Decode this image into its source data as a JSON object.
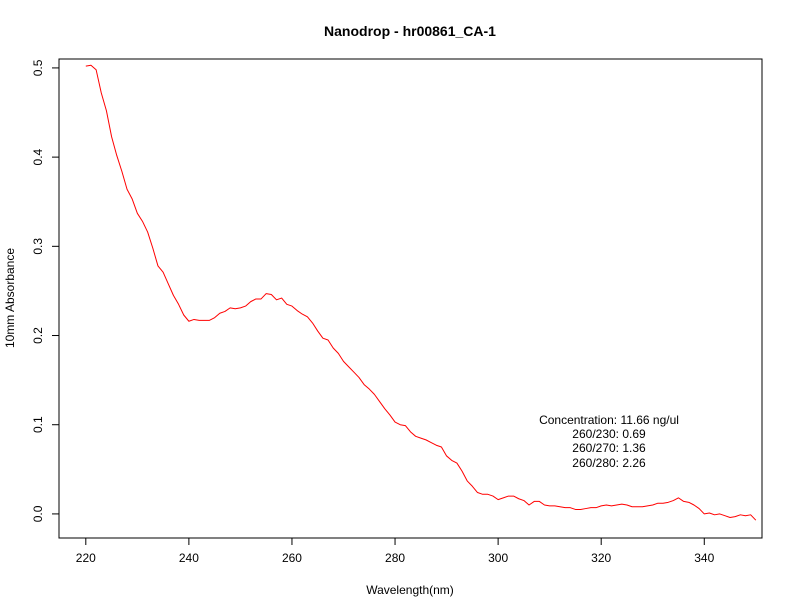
{
  "chart_data": {
    "type": "line",
    "title": "Nanodrop - hr00861_CA-1",
    "xlabel": "Wavelength(nm)",
    "ylabel": "10mm Absorbance",
    "xlim": [
      214.8,
      351.2
    ],
    "ylim": [
      -0.027,
      0.51
    ],
    "xticks": [
      220,
      240,
      260,
      280,
      300,
      320,
      340
    ],
    "yticks": [
      0.0,
      0.1,
      0.2,
      0.3,
      0.4,
      0.5
    ],
    "xtick_labels": [
      "220",
      "240",
      "260",
      "280",
      "300",
      "320",
      "340"
    ],
    "ytick_labels": [
      "0.0",
      "0.1",
      "0.2",
      "0.3",
      "0.4",
      "0.5"
    ],
    "grid": false,
    "legend": "none",
    "series": [
      {
        "color": "#ff0000",
        "x": [
          220,
          221,
          222,
          223,
          224,
          225,
          226,
          227,
          228,
          229,
          230,
          231,
          232,
          233,
          234,
          235,
          236,
          237,
          238,
          239,
          240,
          241,
          242,
          243,
          244,
          245,
          246,
          247,
          248,
          249,
          250,
          251,
          252,
          253,
          254,
          255,
          256,
          257,
          258,
          259,
          260,
          261,
          262,
          263,
          264,
          265,
          266,
          267,
          268,
          269,
          270,
          271,
          272,
          273,
          274,
          275,
          276,
          277,
          278,
          279,
          280,
          281,
          282,
          283,
          284,
          285,
          286,
          287,
          288,
          289,
          290,
          291,
          292,
          293,
          294,
          295,
          296,
          297,
          298,
          299,
          300,
          301,
          302,
          303,
          304,
          305,
          306,
          307,
          308,
          309,
          310,
          311,
          312,
          313,
          314,
          315,
          316,
          317,
          318,
          319,
          320,
          321,
          322,
          323,
          324,
          325,
          326,
          327,
          328,
          329,
          330,
          331,
          332,
          333,
          334,
          335,
          336,
          337,
          338,
          339,
          340,
          341,
          342,
          343,
          344,
          345,
          346,
          347,
          348,
          349,
          350
        ],
        "y": [
          0.502,
          0.503,
          0.498,
          0.472,
          0.452,
          0.423,
          0.402,
          0.384,
          0.364,
          0.353,
          0.337,
          0.328,
          0.316,
          0.298,
          0.278,
          0.271,
          0.258,
          0.245,
          0.235,
          0.223,
          0.216,
          0.218,
          0.217,
          0.217,
          0.217,
          0.22,
          0.225,
          0.227,
          0.231,
          0.23,
          0.231,
          0.233,
          0.238,
          0.241,
          0.241,
          0.247,
          0.246,
          0.24,
          0.242,
          0.235,
          0.233,
          0.228,
          0.224,
          0.221,
          0.214,
          0.205,
          0.197,
          0.195,
          0.186,
          0.18,
          0.171,
          0.165,
          0.159,
          0.153,
          0.145,
          0.14,
          0.134,
          0.126,
          0.118,
          0.111,
          0.103,
          0.1,
          0.099,
          0.092,
          0.087,
          0.085,
          0.083,
          0.08,
          0.077,
          0.075,
          0.065,
          0.06,
          0.057,
          0.048,
          0.037,
          0.031,
          0.024,
          0.022,
          0.022,
          0.02,
          0.016,
          0.018,
          0.02,
          0.02,
          0.017,
          0.015,
          0.01,
          0.014,
          0.014,
          0.01,
          0.009,
          0.009,
          0.008,
          0.007,
          0.007,
          0.005,
          0.005,
          0.006,
          0.007,
          0.007,
          0.009,
          0.01,
          0.009,
          0.01,
          0.011,
          0.01,
          0.008,
          0.008,
          0.008,
          0.009,
          0.01,
          0.012,
          0.012,
          0.013,
          0.015,
          0.018,
          0.014,
          0.013,
          0.01,
          0.006,
          0.0,
          0.001,
          -0.001,
          0.0,
          -0.002,
          -0.004,
          -0.003,
          -0.001,
          -0.002,
          -0.001,
          -0.007
        ]
      }
    ],
    "annotations": [
      "Concentration: 11.66 ng/ul",
      "260/230: 0.69",
      "260/270: 1.36",
      "260/280: 2.26"
    ]
  }
}
